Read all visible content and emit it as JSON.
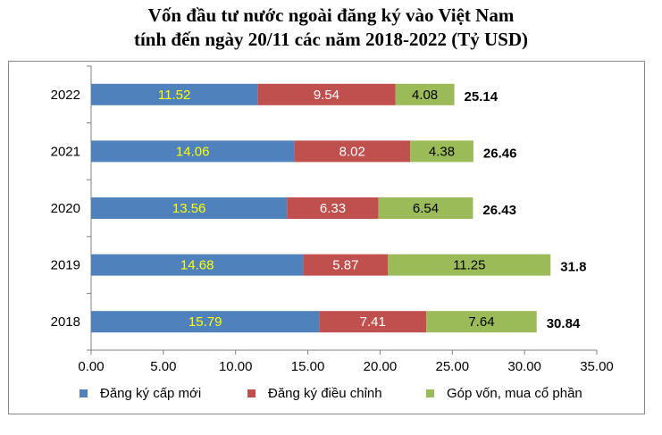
{
  "chart_data": {
    "type": "bar",
    "orientation": "horizontal",
    "stacked": true,
    "title": "Vốn đầu tư nước ngoài đăng ký vào Việt Nam",
    "subtitle": "tính đến ngày 20/11 các năm 2018-2022 (Tỷ USD)",
    "categories": [
      "2022",
      "2021",
      "2020",
      "2019",
      "2018"
    ],
    "series": [
      {
        "name": "Đăng ký cấp mới",
        "color": "#4f81bd",
        "label_color": "#ffff00",
        "values": [
          11.52,
          14.06,
          13.56,
          14.68,
          15.79
        ],
        "labels": [
          "11.52",
          "14.06",
          "13.56",
          "14.68",
          "15.79"
        ]
      },
      {
        "name": "Đăng ký điều chỉnh",
        "color": "#c0504d",
        "label_color": "#ffffff",
        "values": [
          9.54,
          8.02,
          6.33,
          5.87,
          7.41
        ],
        "labels": [
          "9.54",
          "8.02",
          "6.33",
          "5.87",
          "7.41"
        ]
      },
      {
        "name": "Góp vốn, mua cổ phần",
        "color": "#9bbb59",
        "label_color": "#000000",
        "values": [
          4.08,
          4.38,
          6.54,
          11.25,
          7.64
        ],
        "labels": [
          "4.08",
          "4.38",
          "6.54",
          "11.25",
          "7.64"
        ]
      }
    ],
    "totals": [
      "25.14",
      "26.46",
      "26.43",
      "31.8",
      "30.84"
    ],
    "xlim": [
      0,
      35
    ],
    "xticks": [
      "0.00",
      "5.00",
      "10.00",
      "15.00",
      "20.00",
      "25.00",
      "30.00",
      "35.00"
    ],
    "grid": false,
    "legend_position": "bottom"
  }
}
